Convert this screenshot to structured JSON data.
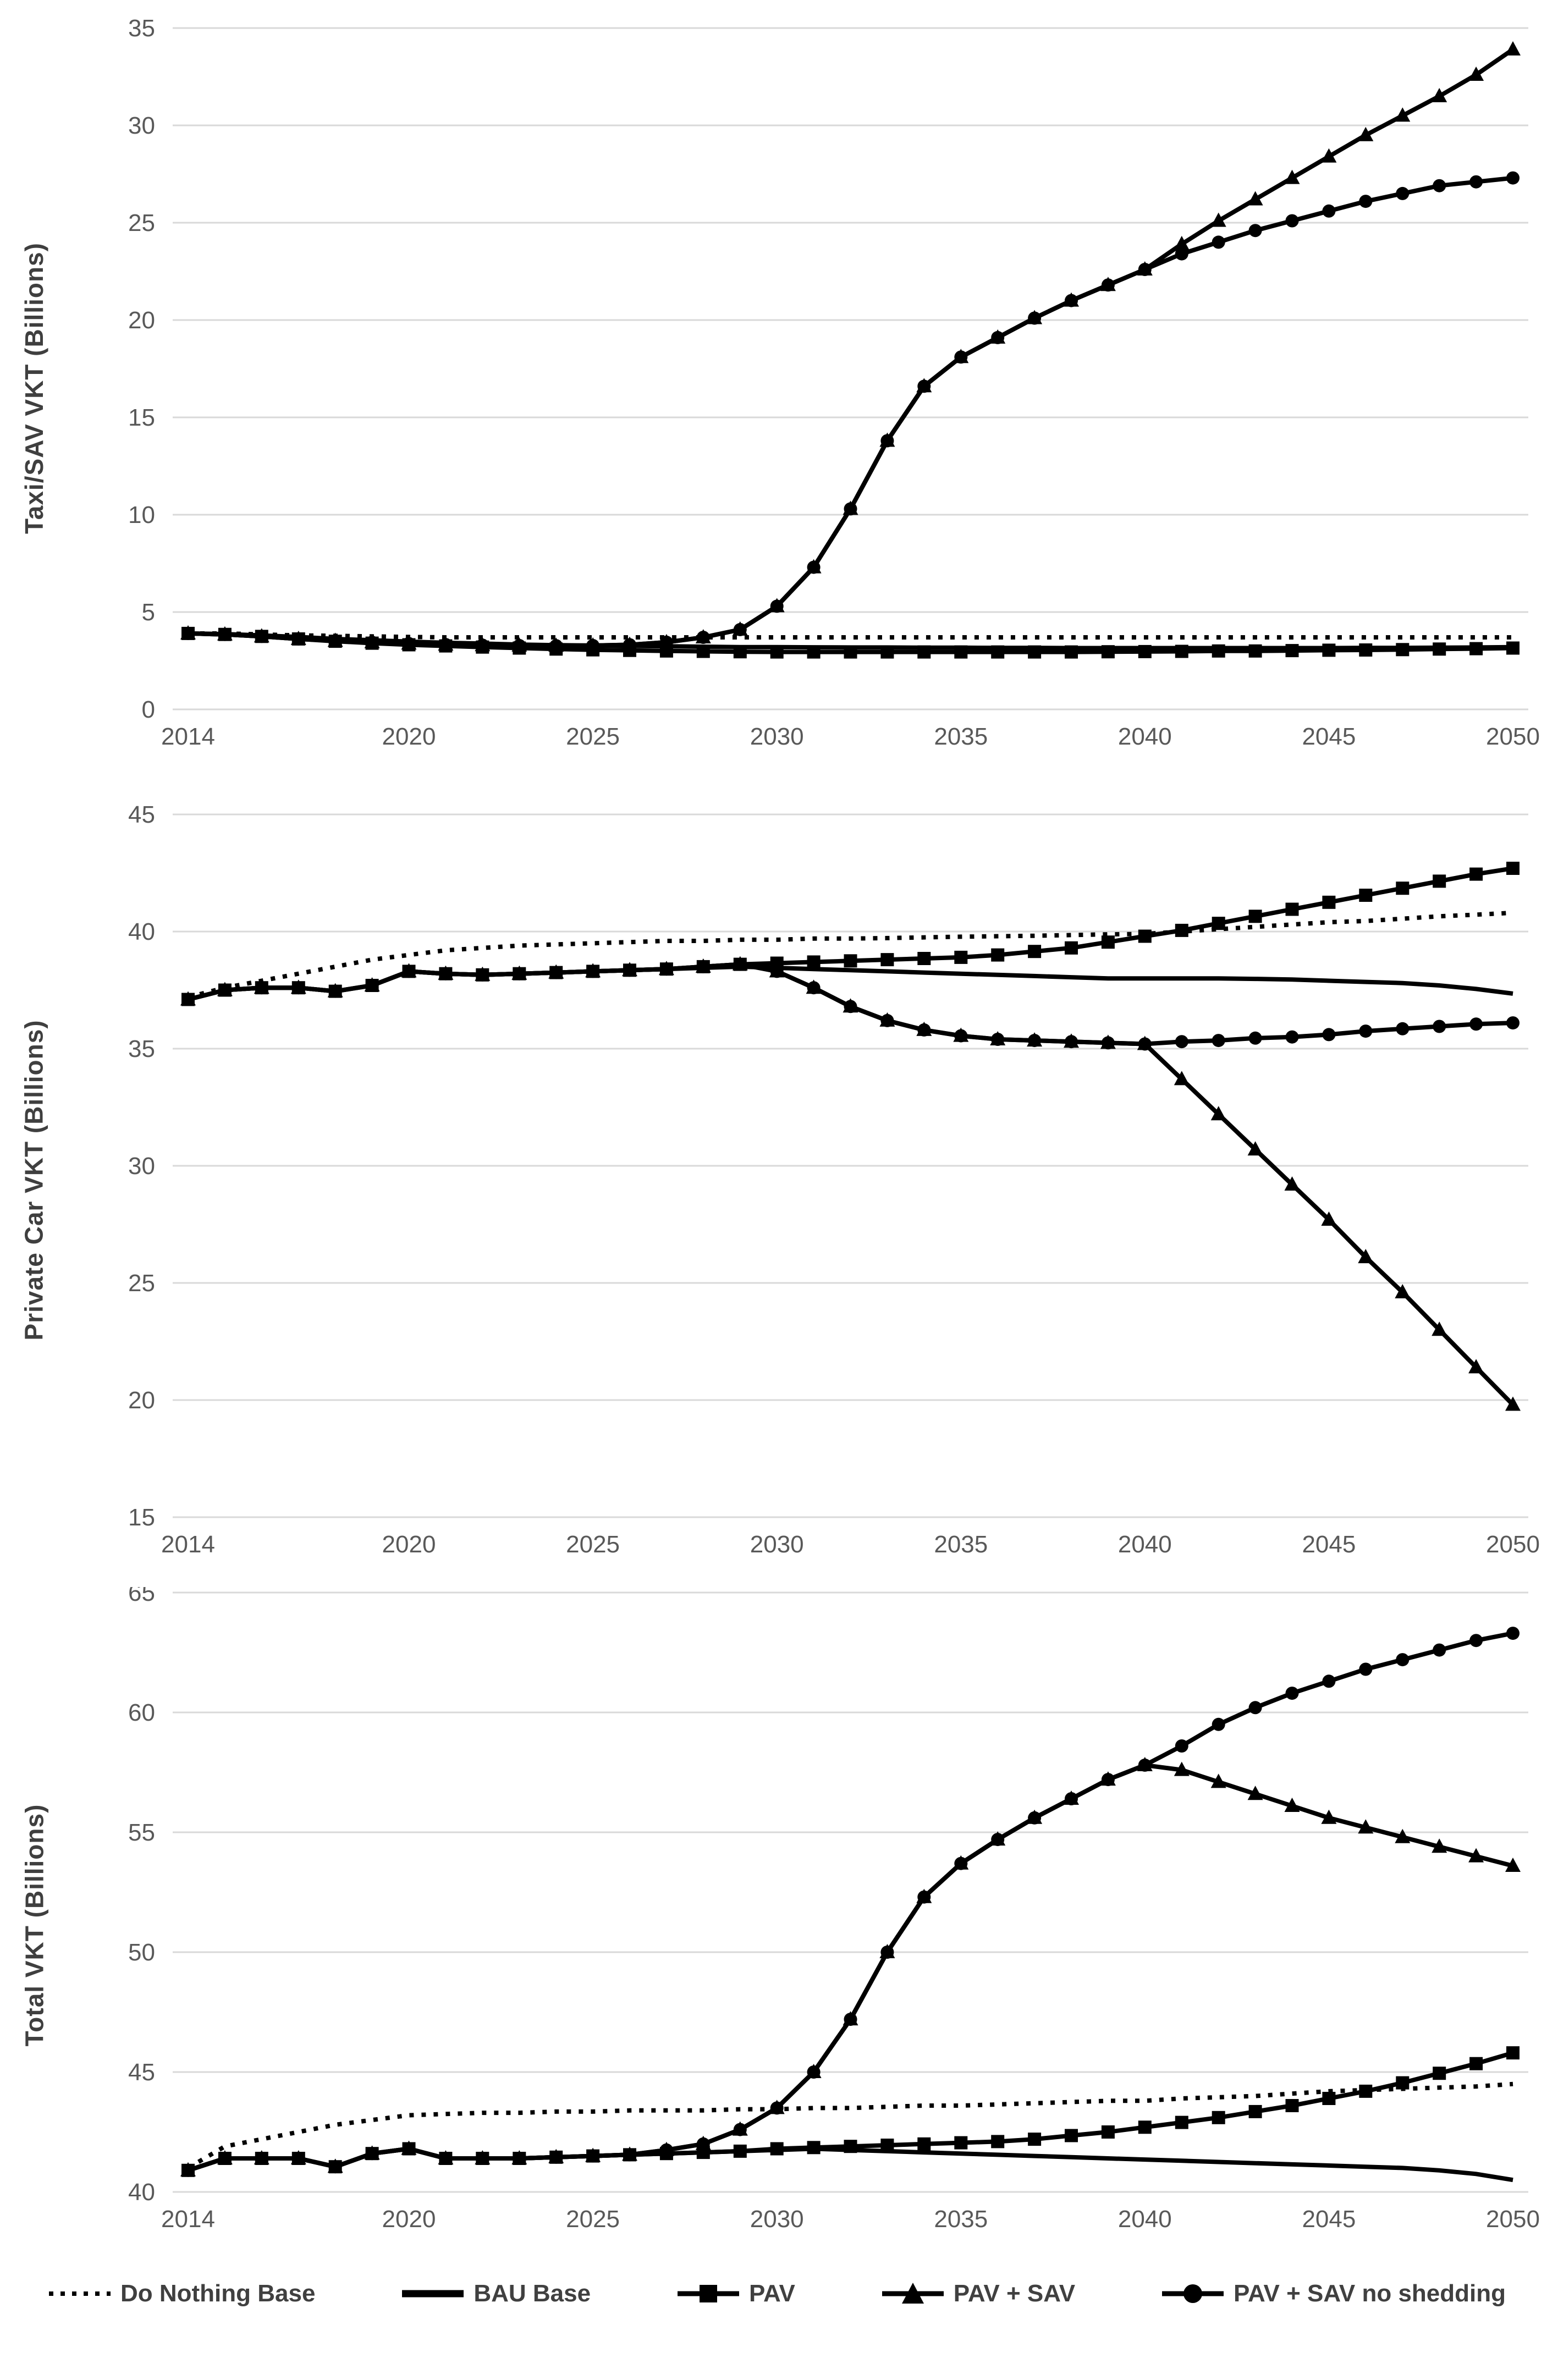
{
  "colors": {
    "line": "#000000",
    "grid": "#d9d9d9",
    "tick_text": "#595959",
    "title_text": "#3f3f3f"
  },
  "years": [
    2014,
    2015,
    2016,
    2017,
    2018,
    2019,
    2020,
    2021,
    2022,
    2023,
    2024,
    2025,
    2026,
    2027,
    2028,
    2029,
    2030,
    2031,
    2032,
    2033,
    2034,
    2035,
    2036,
    2037,
    2038,
    2039,
    2040,
    2041,
    2042,
    2043,
    2044,
    2045,
    2046,
    2047,
    2048,
    2049,
    2050
  ],
  "legend": {
    "items": [
      {
        "label": "Do Nothing Base",
        "marker": "dotted"
      },
      {
        "label": "BAU Base",
        "marker": "solid"
      },
      {
        "label": "PAV",
        "marker": "square"
      },
      {
        "label": "PAV + SAV",
        "marker": "triangle"
      },
      {
        "label": "PAV + SAV no shedding",
        "marker": "circle"
      }
    ]
  },
  "chart_data": [
    {
      "type": "line",
      "ylabel": "Taxi/SAV VKT (Billions)",
      "ylim": [
        0,
        35
      ],
      "yticks": [
        0,
        5,
        10,
        15,
        20,
        25,
        30,
        35
      ],
      "xticks": [
        2014,
        2020,
        2025,
        2030,
        2035,
        2040,
        2045,
        2050
      ],
      "grid": true,
      "legend_position": "bottom-shared",
      "series": [
        {
          "name": "Do Nothing Base",
          "marker": "none",
          "dash": true,
          "values": [
            3.9,
            3.9,
            3.85,
            3.8,
            3.78,
            3.75,
            3.72,
            3.7,
            3.7,
            3.7,
            3.7,
            3.7,
            3.7,
            3.7,
            3.7,
            3.7,
            3.7,
            3.7,
            3.7,
            3.7,
            3.7,
            3.7,
            3.7,
            3.7,
            3.7,
            3.7,
            3.7,
            3.7,
            3.7,
            3.7,
            3.7,
            3.7,
            3.7,
            3.7,
            3.7,
            3.7,
            3.7
          ]
        },
        {
          "name": "BAU Base",
          "marker": "none",
          "dash": false,
          "values": [
            3.9,
            3.87,
            3.8,
            3.72,
            3.62,
            3.55,
            3.48,
            3.42,
            3.38,
            3.33,
            3.3,
            3.28,
            3.26,
            3.24,
            3.22,
            3.2,
            3.2,
            3.19,
            3.18,
            3.18,
            3.17,
            3.17,
            3.16,
            3.16,
            3.15,
            3.15,
            3.15,
            3.15,
            3.15,
            3.15,
            3.15,
            3.15,
            3.16,
            3.16,
            3.17,
            3.18,
            3.2
          ]
        },
        {
          "name": "PAV",
          "marker": "square",
          "dash": false,
          "values": [
            3.9,
            3.85,
            3.75,
            3.62,
            3.5,
            3.4,
            3.32,
            3.26,
            3.2,
            3.15,
            3.1,
            3.06,
            3.03,
            3.0,
            2.98,
            2.96,
            2.95,
            2.95,
            2.95,
            2.95,
            2.95,
            2.95,
            2.95,
            2.95,
            2.95,
            2.96,
            2.97,
            2.98,
            3.0,
            3.0,
            3.02,
            3.04,
            3.05,
            3.07,
            3.1,
            3.12,
            3.15
          ]
        },
        {
          "name": "PAV + SAV",
          "marker": "triangle",
          "dash": false,
          "values": [
            3.9,
            3.85,
            3.75,
            3.62,
            3.52,
            3.45,
            3.38,
            3.33,
            3.3,
            3.28,
            3.27,
            3.28,
            3.32,
            3.45,
            3.7,
            4.1,
            5.3,
            7.3,
            10.3,
            13.8,
            16.6,
            18.1,
            19.1,
            20.1,
            21.0,
            21.8,
            22.6,
            23.9,
            25.1,
            26.2,
            27.3,
            28.4,
            29.5,
            30.5,
            31.5,
            32.6,
            33.9
          ]
        },
        {
          "name": "PAV + SAV no shedding",
          "marker": "circle",
          "dash": false,
          "values": [
            3.9,
            3.85,
            3.75,
            3.62,
            3.52,
            3.45,
            3.38,
            3.33,
            3.3,
            3.28,
            3.27,
            3.28,
            3.32,
            3.45,
            3.7,
            4.1,
            5.3,
            7.3,
            10.3,
            13.8,
            16.6,
            18.1,
            19.1,
            20.1,
            21.0,
            21.8,
            22.6,
            23.4,
            24.0,
            24.6,
            25.1,
            25.6,
            26.1,
            26.5,
            26.9,
            27.1,
            27.3
          ]
        }
      ]
    },
    {
      "type": "line",
      "ylabel": "Private Car VKT (Billions)",
      "ylim": [
        15,
        45
      ],
      "yticks": [
        15,
        20,
        25,
        30,
        35,
        40,
        45
      ],
      "xticks": [
        2014,
        2020,
        2025,
        2030,
        2035,
        2040,
        2045,
        2050
      ],
      "grid": true,
      "legend_position": "bottom-shared",
      "series": [
        {
          "name": "Do Nothing Base",
          "marker": "none",
          "dash": true,
          "values": [
            37.2,
            37.6,
            37.9,
            38.2,
            38.5,
            38.8,
            39.0,
            39.2,
            39.3,
            39.4,
            39.45,
            39.5,
            39.55,
            39.6,
            39.6,
            39.65,
            39.65,
            39.7,
            39.7,
            39.72,
            39.75,
            39.78,
            39.8,
            39.82,
            39.85,
            39.88,
            39.9,
            40.0,
            40.1,
            40.2,
            40.3,
            40.4,
            40.45,
            40.55,
            40.65,
            40.72,
            40.8
          ]
        },
        {
          "name": "BAU Base",
          "marker": "none",
          "dash": false,
          "values": [
            37.1,
            37.5,
            37.6,
            37.6,
            37.45,
            37.7,
            38.3,
            38.2,
            38.15,
            38.2,
            38.25,
            38.3,
            38.35,
            38.4,
            38.45,
            38.5,
            38.45,
            38.4,
            38.35,
            38.3,
            38.25,
            38.2,
            38.15,
            38.1,
            38.05,
            38.0,
            38.0,
            38.0,
            38.0,
            37.98,
            37.95,
            37.9,
            37.85,
            37.8,
            37.7,
            37.55,
            37.35
          ]
        },
        {
          "name": "PAV",
          "marker": "square",
          "dash": false,
          "values": [
            37.1,
            37.5,
            37.6,
            37.6,
            37.45,
            37.7,
            38.3,
            38.2,
            38.15,
            38.2,
            38.25,
            38.3,
            38.35,
            38.4,
            38.5,
            38.6,
            38.65,
            38.7,
            38.75,
            38.8,
            38.85,
            38.9,
            39.0,
            39.15,
            39.3,
            39.55,
            39.8,
            40.05,
            40.35,
            40.65,
            40.95,
            41.25,
            41.55,
            41.85,
            42.15,
            42.45,
            42.7
          ]
        },
        {
          "name": "PAV + SAV",
          "marker": "triangle",
          "dash": false,
          "values": [
            37.1,
            37.5,
            37.6,
            37.6,
            37.45,
            37.7,
            38.3,
            38.2,
            38.15,
            38.2,
            38.25,
            38.3,
            38.35,
            38.4,
            38.5,
            38.6,
            38.3,
            37.6,
            36.8,
            36.2,
            35.8,
            35.55,
            35.4,
            35.35,
            35.3,
            35.25,
            35.2,
            33.7,
            32.2,
            30.7,
            29.2,
            27.7,
            26.1,
            24.6,
            23.0,
            21.4,
            19.8
          ]
        },
        {
          "name": "PAV + SAV no shedding",
          "marker": "circle",
          "dash": false,
          "values": [
            37.1,
            37.5,
            37.6,
            37.6,
            37.45,
            37.7,
            38.3,
            38.2,
            38.15,
            38.2,
            38.25,
            38.3,
            38.35,
            38.4,
            38.5,
            38.6,
            38.3,
            37.6,
            36.8,
            36.2,
            35.8,
            35.55,
            35.4,
            35.35,
            35.3,
            35.25,
            35.2,
            35.3,
            35.35,
            35.45,
            35.5,
            35.6,
            35.75,
            35.85,
            35.95,
            36.05,
            36.1
          ]
        }
      ]
    },
    {
      "type": "line",
      "ylabel": "Total VKT (Billions)",
      "ylim": [
        40,
        65
      ],
      "yticks": [
        40,
        45,
        50,
        55,
        60,
        65
      ],
      "xticks": [
        2014,
        2020,
        2025,
        2030,
        2035,
        2040,
        2045,
        2050
      ],
      "grid": true,
      "legend_position": "bottom-shared",
      "series": [
        {
          "name": "Do Nothing Base",
          "marker": "none",
          "dash": true,
          "values": [
            41.0,
            41.9,
            42.2,
            42.5,
            42.8,
            43.0,
            43.2,
            43.25,
            43.3,
            43.3,
            43.35,
            43.35,
            43.4,
            43.4,
            43.4,
            43.45,
            43.45,
            43.5,
            43.5,
            43.55,
            43.6,
            43.6,
            43.65,
            43.7,
            43.75,
            43.8,
            43.8,
            43.9,
            43.95,
            44.0,
            44.1,
            44.2,
            44.25,
            44.3,
            44.35,
            44.4,
            44.5
          ]
        },
        {
          "name": "BAU Base",
          "marker": "none",
          "dash": false,
          "values": [
            40.9,
            41.4,
            41.4,
            41.4,
            41.05,
            41.6,
            41.8,
            41.4,
            41.4,
            41.4,
            41.45,
            41.5,
            41.55,
            41.6,
            41.65,
            41.7,
            41.75,
            41.8,
            41.75,
            41.7,
            41.65,
            41.6,
            41.55,
            41.5,
            41.45,
            41.4,
            41.35,
            41.3,
            41.25,
            41.2,
            41.15,
            41.1,
            41.05,
            41.0,
            40.9,
            40.75,
            40.5
          ]
        },
        {
          "name": "PAV",
          "marker": "square",
          "dash": false,
          "values": [
            40.9,
            41.4,
            41.4,
            41.4,
            41.05,
            41.6,
            41.8,
            41.4,
            41.4,
            41.4,
            41.45,
            41.5,
            41.55,
            41.6,
            41.65,
            41.7,
            41.8,
            41.85,
            41.9,
            41.95,
            42.0,
            42.05,
            42.1,
            42.2,
            42.35,
            42.5,
            42.7,
            42.9,
            43.1,
            43.35,
            43.6,
            43.9,
            44.2,
            44.55,
            44.95,
            45.35,
            45.8
          ]
        },
        {
          "name": "PAV + SAV",
          "marker": "triangle",
          "dash": false,
          "values": [
            40.9,
            41.4,
            41.4,
            41.4,
            41.05,
            41.6,
            41.8,
            41.4,
            41.4,
            41.4,
            41.45,
            41.5,
            41.55,
            41.75,
            42.0,
            42.6,
            43.5,
            45.0,
            47.2,
            50.0,
            52.3,
            53.7,
            54.7,
            55.6,
            56.4,
            57.2,
            57.8,
            57.6,
            57.1,
            56.6,
            56.1,
            55.6,
            55.2,
            54.8,
            54.4,
            54.0,
            53.6
          ]
        },
        {
          "name": "PAV + SAV no shedding",
          "marker": "circle",
          "dash": false,
          "values": [
            40.9,
            41.4,
            41.4,
            41.4,
            41.05,
            41.6,
            41.8,
            41.4,
            41.4,
            41.4,
            41.45,
            41.5,
            41.55,
            41.75,
            42.0,
            42.6,
            43.5,
            45.0,
            47.2,
            50.0,
            52.3,
            53.7,
            54.7,
            55.6,
            56.4,
            57.2,
            57.8,
            58.6,
            59.5,
            60.2,
            60.8,
            61.3,
            61.8,
            62.2,
            62.6,
            63.0,
            63.3
          ]
        }
      ]
    }
  ]
}
